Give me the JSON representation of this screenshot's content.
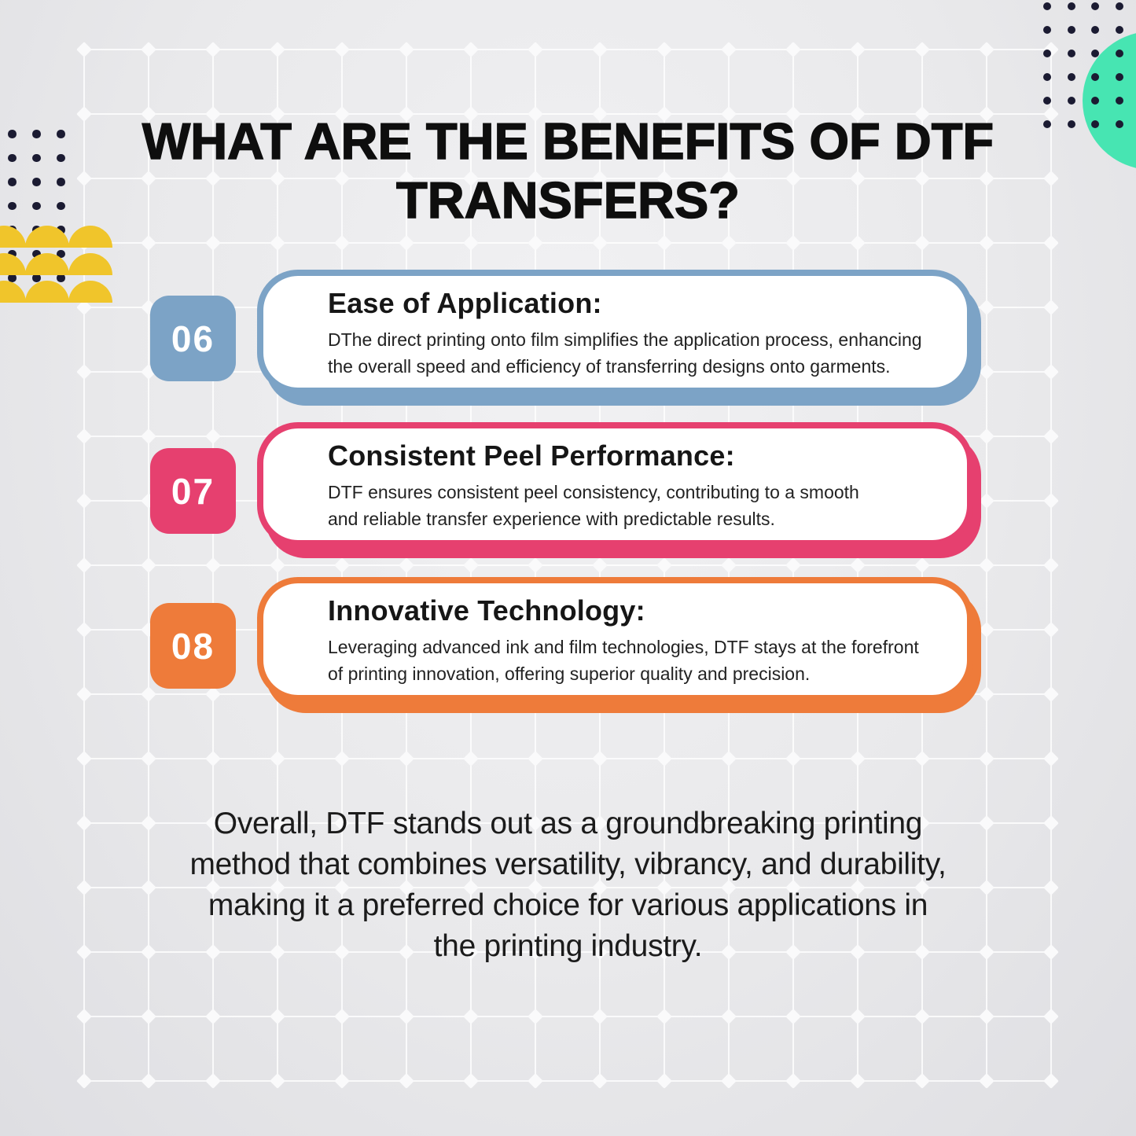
{
  "title": {
    "lines": [
      "WHAT ARE THE BENEFITS OF DTF",
      "TRANSFERS?"
    ]
  },
  "benefits": [
    {
      "number": "06",
      "title": "Ease of Application:",
      "description_lines": [
        "DThe direct printing onto film simplifies the application process, enhancing",
        "the overall speed and efficiency of transferring designs onto garments."
      ],
      "color": "#7ca3c6"
    },
    {
      "number": "07",
      "title": "Consistent Peel Performance:",
      "description_lines": [
        "DTF ensures consistent peel consistency, contributing to a smooth",
        "and reliable transfer experience with predictable results."
      ],
      "color": "#e6406f"
    },
    {
      "number": "08",
      "title": "Innovative Technology:",
      "description_lines": [
        "Leveraging advanced ink and film technologies, DTF stays at the forefront",
        "of printing innovation, offering superior quality and precision."
      ],
      "color": "#ee7b3a"
    }
  ],
  "conclusion": {
    "lines": [
      "Overall, DTF stands out as a groundbreaking printing",
      "method that combines versatility, vibrancy, and durability,",
      "making it a preferred choice for various applications in",
      "the printing industry."
    ]
  },
  "colors": {
    "background": "#e9e9eb",
    "grid_diamond": "#fafafb",
    "dots": "#1b1b32",
    "teal": "#47e5b2",
    "yellow": "#f0c52b",
    "blue": "#7ca3c6",
    "pink": "#e6406f",
    "orange": "#ee7b3a",
    "title_text": "#0e0e0e",
    "body_text": "#222222"
  }
}
